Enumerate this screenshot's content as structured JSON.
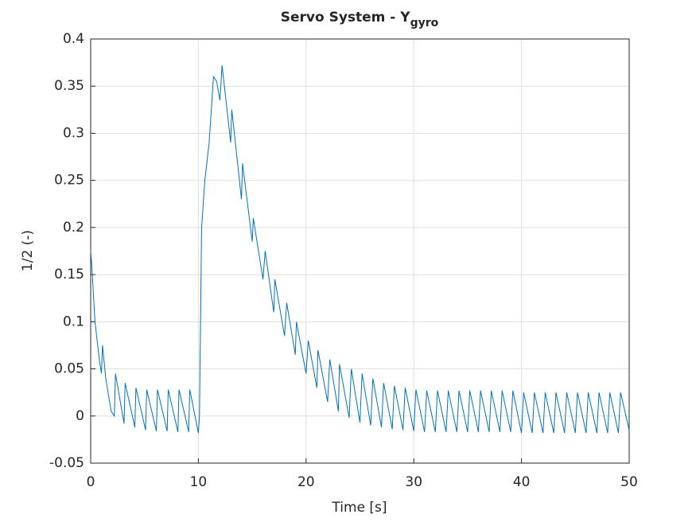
{
  "chart_data": {
    "type": "line",
    "title": "Servo System - Y",
    "title_subscript": "gyro",
    "xlabel": "Time [s]",
    "ylabel": "1/2 (-)",
    "xlim": [
      0,
      50
    ],
    "xticks": [
      0,
      10,
      20,
      30,
      40,
      50
    ],
    "ylim": [
      -0.05,
      0.4
    ],
    "yticks": [
      -0.05,
      0,
      0.05,
      0.1,
      0.15,
      0.2,
      0.25,
      0.3,
      0.35,
      0.4
    ],
    "grid": true,
    "x": [
      0,
      0.1,
      0.4,
      0.8,
      1.0,
      1.1,
      1.4,
      1.9,
      2.2,
      2.3,
      3.1,
      3.2,
      4.1,
      4.2,
      5.1,
      5.2,
      6.1,
      6.2,
      7.1,
      7.2,
      8.1,
      8.2,
      9.1,
      9.2,
      10.0,
      10.1,
      10.3,
      10.6,
      11.0,
      11.4,
      11.7,
      12.0,
      12.2,
      13.0,
      13.1,
      14.0,
      14.1,
      15.0,
      15.1,
      16.0,
      16.2,
      17.0,
      17.1,
      18.0,
      18.2,
      19.0,
      19.1,
      20.0,
      20.2,
      21.0,
      21.1,
      22.0,
      22.2,
      23.0,
      23.1,
      24.0,
      24.2,
      25.0,
      25.2,
      26.0,
      26.2,
      27.0,
      27.2,
      28.0,
      28.2,
      29.0,
      29.2,
      30.0,
      30.2,
      31.0,
      31.2,
      32.0,
      32.2,
      33.0,
      33.2,
      34.0,
      34.2,
      35.0,
      35.2,
      36.0,
      36.2,
      37.0,
      37.2,
      38.0,
      38.2,
      39.0,
      39.2,
      40.0,
      40.2,
      41.0,
      41.2,
      42.0,
      42.2,
      43.0,
      43.2,
      44.0,
      44.2,
      45.0,
      45.2,
      46.0,
      46.2,
      47.0,
      47.2,
      48.0,
      48.2,
      49.0,
      49.2,
      50.0
    ],
    "series": [
      {
        "name": "Y",
        "color": "#0072bd",
        "values": [
          0.175,
          0.16,
          0.1,
          0.06,
          0.045,
          0.075,
          0.04,
          0.005,
          0,
          0.045,
          -0.008,
          0.035,
          -0.012,
          0.03,
          -0.015,
          0.028,
          -0.016,
          0.028,
          -0.016,
          0.028,
          -0.017,
          0.028,
          -0.017,
          0.028,
          -0.018,
          0.0,
          0.2,
          0.25,
          0.29,
          0.36,
          0.355,
          0.335,
          0.372,
          0.29,
          0.325,
          0.23,
          0.268,
          0.185,
          0.21,
          0.145,
          0.175,
          0.11,
          0.145,
          0.085,
          0.12,
          0.065,
          0.1,
          0.045,
          0.08,
          0.03,
          0.07,
          0.015,
          0.06,
          0.005,
          0.055,
          -0.002,
          0.05,
          -0.007,
          0.045,
          -0.01,
          0.04,
          -0.012,
          0.035,
          -0.014,
          0.032,
          -0.015,
          0.03,
          -0.016,
          0.028,
          -0.017,
          0.027,
          -0.017,
          0.027,
          -0.017,
          0.027,
          -0.017,
          0.027,
          -0.017,
          0.027,
          -0.017,
          0.027,
          -0.017,
          0.027,
          -0.017,
          0.027,
          -0.017,
          0.027,
          -0.018,
          0.025,
          -0.018,
          0.025,
          -0.018,
          0.025,
          -0.018,
          0.025,
          -0.018,
          0.025,
          -0.018,
          0.025,
          -0.018,
          0.025,
          -0.018,
          0.025,
          -0.018,
          0.025,
          -0.018,
          0.025,
          -0.015
        ]
      }
    ]
  }
}
